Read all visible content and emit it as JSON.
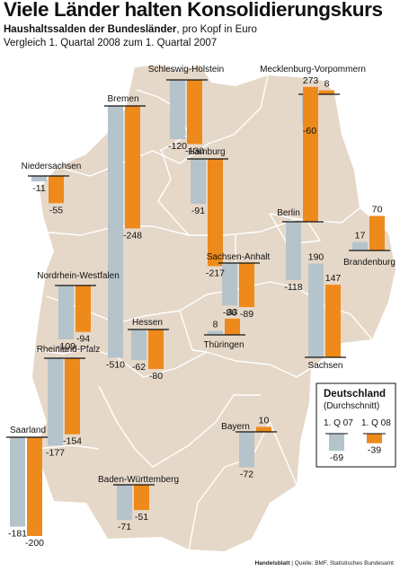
{
  "title": "Viele Länder halten Konsolidierungskurs",
  "subtitle_bold": "Haushaltssalden der Bundesländer",
  "subtitle_rest": ", pro Kopf in Euro",
  "subtitle2": "Vergleich 1. Quartal 2008 zum 1. Quartal 2007",
  "source": {
    "brand": "Handelsblatt",
    "text": " | Quelle: BMF, Statistisches Bundesamt"
  },
  "colors": {
    "q1_07": "#b5c3cb",
    "q1_08": "#ee8a1c",
    "map_fill": "#e6d8c8",
    "border": "#ffffff",
    "baseline": "#111111"
  },
  "chart_data": {
    "type": "bar",
    "unit": "Euro pro Kopf",
    "series": [
      {
        "name": "1. Q 07"
      },
      {
        "name": "1. Q 08"
      }
    ],
    "states": [
      {
        "name": "Schleswig-Holstein",
        "values": [
          -120,
          -130
        ]
      },
      {
        "name": "Mecklenburg-Vorpommern",
        "values": [
          -60,
          8
        ]
      },
      {
        "name": "Bremen",
        "values": [
          -510,
          -248
        ]
      },
      {
        "name": "Hamburg",
        "values": [
          -91,
          -217
        ]
      },
      {
        "name": "Niedersachsen",
        "values": [
          -11,
          -55
        ]
      },
      {
        "name": "Berlin",
        "values": [
          -118,
          273
        ]
      },
      {
        "name": "Brandenburg",
        "values": [
          17,
          70
        ]
      },
      {
        "name": "Sachsen-Anhalt",
        "values": [
          -86,
          -89
        ]
      },
      {
        "name": "Nordrhein-Westfalen",
        "values": [
          -109,
          -94
        ]
      },
      {
        "name": "Hessen",
        "values": [
          -62,
          -80
        ]
      },
      {
        "name": "Thüringen",
        "values": [
          8,
          33
        ]
      },
      {
        "name": "Sachsen",
        "values": [
          190,
          147
        ]
      },
      {
        "name": "Rheinland-Pfalz",
        "values": [
          -177,
          -154
        ]
      },
      {
        "name": "Saarland",
        "values": [
          -181,
          -200
        ]
      },
      {
        "name": "Bayern",
        "values": [
          -72,
          10
        ]
      },
      {
        "name": "Baden-Württemberg",
        "values": [
          -71,
          -51
        ]
      }
    ],
    "average": {
      "title": "Deutschland",
      "subtitle": "(Durchschnitt)",
      "labels": [
        "1. Q 07",
        "1. Q 08"
      ],
      "values": [
        -69,
        -39
      ]
    }
  }
}
